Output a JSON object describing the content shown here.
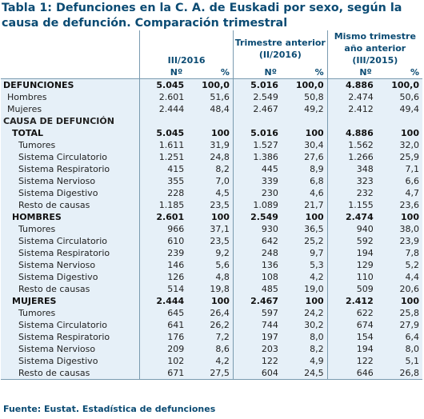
{
  "title": "Tabla 1: Defunciones en la C. A. de Euskadi por sexo, según la causa de defunción. Comparación trimestral",
  "columns": {
    "period1": "III/2016",
    "period2": "Trimestre anterior (II/2016)",
    "period3": "Mismo trimestre año anterior (III/2015)",
    "unit_n": "Nº",
    "unit_pct": "%"
  },
  "rows": [
    {
      "label": "DEFUNCIONES",
      "v": [
        "5.045",
        "100,0",
        "5.016",
        "100,0",
        "4.886",
        "100,0"
      ],
      "kind": "b"
    },
    {
      "label": "Hombres",
      "v": [
        "2.601",
        "51,6",
        "2.549",
        "50,8",
        "2.474",
        "50,6"
      ],
      "kind": "sub"
    },
    {
      "label": "Mujeres",
      "v": [
        "2.444",
        "48,4",
        "2.467",
        "49,2",
        "2.412",
        "49,4"
      ],
      "kind": "sub"
    },
    {
      "label": "CAUSA DE DEFUNCIÓN",
      "v": [
        "",
        "",
        "",
        "",
        "",
        ""
      ],
      "kind": "section"
    },
    {
      "label": "TOTAL",
      "v": [
        "5.045",
        "100",
        "5.016",
        "100",
        "4.886",
        "100"
      ],
      "kind": "b total"
    },
    {
      "label": "Tumores",
      "v": [
        "1.611",
        "31,9",
        "1.527",
        "30,4",
        "1.562",
        "32,0"
      ],
      "kind": "sub2"
    },
    {
      "label": "Sistema Circulatorio",
      "v": [
        "1.251",
        "24,8",
        "1.386",
        "27,6",
        "1.266",
        "25,9"
      ],
      "kind": "sub2"
    },
    {
      "label": "Sistema Respiratorio",
      "v": [
        "415",
        "8,2",
        "445",
        "8,9",
        "348",
        "7,1"
      ],
      "kind": "sub2"
    },
    {
      "label": "Sistema Nervioso",
      "v": [
        "355",
        "7,0",
        "339",
        "6,8",
        "323",
        "6,6"
      ],
      "kind": "sub2"
    },
    {
      "label": "Sistema Digestivo",
      "v": [
        "228",
        "4,5",
        "230",
        "4,6",
        "232",
        "4,7"
      ],
      "kind": "sub2"
    },
    {
      "label": "Resto de causas",
      "v": [
        "1.185",
        "23,5",
        "1.089",
        "21,7",
        "1.155",
        "23,6"
      ],
      "kind": "sub2"
    },
    {
      "label": "HOMBRES",
      "v": [
        "2.601",
        "100",
        "2.549",
        "100",
        "2.474",
        "100"
      ],
      "kind": "b total"
    },
    {
      "label": "Tumores",
      "v": [
        "966",
        "37,1",
        "930",
        "36,5",
        "940",
        "38,0"
      ],
      "kind": "sub2"
    },
    {
      "label": "Sistema Circulatorio",
      "v": [
        "610",
        "23,5",
        "642",
        "25,2",
        "592",
        "23,9"
      ],
      "kind": "sub2"
    },
    {
      "label": "Sistema Respiratorio",
      "v": [
        "239",
        "9,2",
        "248",
        "9,7",
        "194",
        "7,8"
      ],
      "kind": "sub2"
    },
    {
      "label": "Sistema Nervioso",
      "v": [
        "146",
        "5,6",
        "136",
        "5,3",
        "129",
        "5,2"
      ],
      "kind": "sub2"
    },
    {
      "label": "Sistema Digestivo",
      "v": [
        "126",
        "4,8",
        "108",
        "4,2",
        "110",
        "4,4"
      ],
      "kind": "sub2"
    },
    {
      "label": "Resto de causas",
      "v": [
        "514",
        "19,8",
        "485",
        "19,0",
        "509",
        "20,6"
      ],
      "kind": "sub2"
    },
    {
      "label": "MUJERES",
      "v": [
        "2.444",
        "100",
        "2.467",
        "100",
        "2.412",
        "100"
      ],
      "kind": "b total"
    },
    {
      "label": "Tumores",
      "v": [
        "645",
        "26,4",
        "597",
        "24,2",
        "622",
        "25,8"
      ],
      "kind": "sub2"
    },
    {
      "label": "Sistema Circulatorio",
      "v": [
        "641",
        "26,2",
        "744",
        "30,2",
        "674",
        "27,9"
      ],
      "kind": "sub2"
    },
    {
      "label": "Sistema Respiratorio",
      "v": [
        "176",
        "7,2",
        "197",
        "8,0",
        "154",
        "6,4"
      ],
      "kind": "sub2"
    },
    {
      "label": "Sistema Nervioso",
      "v": [
        "209",
        "8,6",
        "203",
        "8,2",
        "194",
        "8,0"
      ],
      "kind": "sub2"
    },
    {
      "label": "Sistema Digestivo",
      "v": [
        "102",
        "4,2",
        "122",
        "4,9",
        "122",
        "5,1"
      ],
      "kind": "sub2"
    },
    {
      "label": "Resto de causas",
      "v": [
        "671",
        "27,5",
        "604",
        "24,5",
        "646",
        "26,8"
      ],
      "kind": "sub2"
    }
  ],
  "source": "Fuente: Eustat. Estadística de defunciones"
}
